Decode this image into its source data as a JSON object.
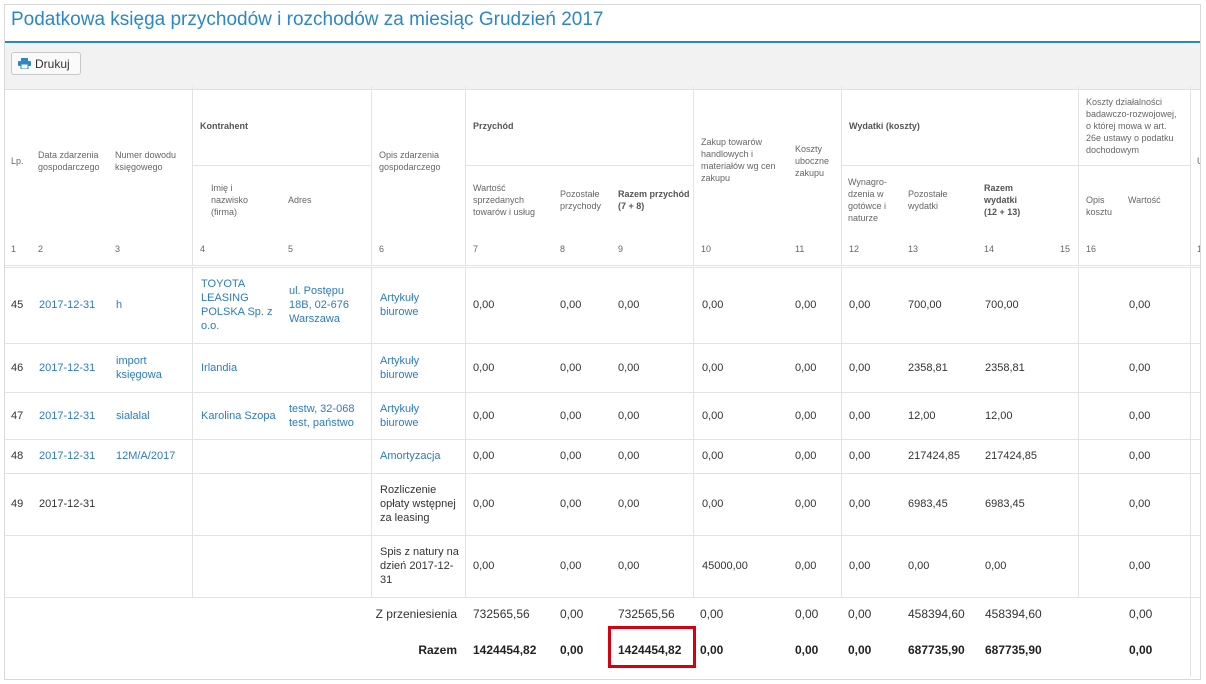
{
  "page": {
    "title": "Podatkowa księga przychodów i rozchodów za miesiąc Grudzień 2017",
    "print_button": "Drukuj",
    "print_icon": "printer-icon",
    "accent_color": "#2b87c8",
    "highlight_color": "#d6000e"
  },
  "headers": {
    "lp": "Lp.",
    "date": [
      "Data zdarzenia",
      "gospodarczego"
    ],
    "doc": [
      "Numer dowodu",
      "księgowego"
    ],
    "contractor": "Kontrahent",
    "name": [
      "Imię i",
      "nazwisko",
      "(firma)"
    ],
    "address": "Adres",
    "desc": [
      "Opis zdarzenia",
      "gospodarczego"
    ],
    "income": "Przychód",
    "sales": [
      "Wartość",
      "sprzedanych",
      "towarów i usług"
    ],
    "other_income": [
      "Pozostałe",
      "przychody"
    ],
    "income_total": [
      "Razem przychód",
      "(7 + 8)"
    ],
    "purchase": [
      "Zakup towarów",
      "handlowych i",
      "materiałów wg cen",
      "zakupu"
    ],
    "side_costs": [
      "Koszty",
      "uboczne",
      "zakupu"
    ],
    "expenses": "Wydatki (koszty)",
    "wages": [
      "Wynagro-",
      "dzenia w",
      "gotówce i",
      "naturze"
    ],
    "other_expenses": [
      "Pozostałe",
      "wydatki"
    ],
    "expenses_total": [
      "Razem",
      "wydatki",
      "(12 + 13)"
    ],
    "rd": [
      "Koszty działalności",
      "badawczo-rozwojowej,",
      "o której mowa w art.",
      "26e ustawy o podatku",
      "dochodowym"
    ],
    "rd_desc": [
      "Opis",
      "kosztu"
    ],
    "rd_value": "Wartość",
    "cut_u": "U",
    "nums": [
      "1",
      "2",
      "3",
      "4",
      "5",
      "6",
      "7",
      "8",
      "9",
      "10",
      "11",
      "12",
      "13",
      "14",
      "15",
      "16",
      "1"
    ]
  },
  "rows": [
    {
      "lp": "45",
      "date": "2017-12-31",
      "doc": [
        "h"
      ],
      "name": [
        "TOYOTA",
        "LEASING",
        "POLSKA Sp. z",
        "o.o."
      ],
      "addr": [
        "ul. Postępu",
        "18B, 02-676",
        "Warszawa"
      ],
      "desc": [
        "Artykuły",
        "biurowe"
      ],
      "c7": "0,00",
      "c8": "0,00",
      "c9": "0,00",
      "c10": "0,00",
      "c11": "0,00",
      "c12": "0,00",
      "c13": "700,00",
      "c14": "700,00",
      "c16": "0,00"
    },
    {
      "lp": "46",
      "date": "2017-12-31",
      "doc": [
        "import",
        "księgowa"
      ],
      "name": [
        "Irlandia"
      ],
      "addr": [],
      "desc": [
        "Artykuły",
        "biurowe"
      ],
      "c7": "0,00",
      "c8": "0,00",
      "c9": "0,00",
      "c10": "0,00",
      "c11": "0,00",
      "c12": "0,00",
      "c13": "2358,81",
      "c14": "2358,81",
      "c16": "0,00"
    },
    {
      "lp": "47",
      "date": "2017-12-31",
      "doc": [
        "sialalal"
      ],
      "name": [
        "Karolina Szopa"
      ],
      "addr": [
        "testw, 32-068",
        "test, państwo"
      ],
      "desc": [
        "Artykuły",
        "biurowe"
      ],
      "c7": "0,00",
      "c8": "0,00",
      "c9": "0,00",
      "c10": "0,00",
      "c11": "0,00",
      "c12": "0,00",
      "c13": "12,00",
      "c14": "12,00",
      "c16": "0,00"
    },
    {
      "lp": "48",
      "date": "2017-12-31",
      "doc": [
        "12M/A/2017"
      ],
      "name": [],
      "addr": [],
      "desc": [
        "Amortyzacja"
      ],
      "c7": "0,00",
      "c8": "0,00",
      "c9": "0,00",
      "c10": "0,00",
      "c11": "0,00",
      "c12": "0,00",
      "c13": "217424,85",
      "c14": "217424,85",
      "c16": "0,00"
    },
    {
      "lp": "49",
      "date": "2017-12-31",
      "doc": [],
      "name": [],
      "addr": [],
      "desc": [
        "Rozliczenie",
        "opłaty wstępnej",
        "za leasing"
      ],
      "c7": "0,00",
      "c8": "0,00",
      "c9": "0,00",
      "c10": "0,00",
      "c11": "0,00",
      "c12": "0,00",
      "c13": "6983,45",
      "c14": "6983,45",
      "c16": "0,00"
    },
    {
      "lp": "",
      "date": "",
      "doc": [],
      "name": [],
      "addr": [],
      "desc": [
        "Spis z natury na",
        "dzień 2017-12-",
        "31"
      ],
      "c7": "0,00",
      "c8": "0,00",
      "c9": "0,00",
      "c10": "45000,00",
      "c11": "0,00",
      "c12": "0,00",
      "c13": "0,00",
      "c14": "0,00",
      "c16": "0,00"
    }
  ],
  "totals": [
    {
      "label": "Z przeniesienia",
      "c7": "732565,56",
      "c8": "0,00",
      "c9": "732565,56",
      "c10": "0,00",
      "c11": "0,00",
      "c12": "0,00",
      "c13": "458394,60",
      "c14": "458394,60",
      "c16": "0,00"
    },
    {
      "label": "Razem",
      "c7": "1424454,82",
      "c8": "0,00",
      "c9": "1424454,82",
      "c10": "0,00",
      "c11": "0,00",
      "c12": "0,00",
      "c13": "687735,90",
      "c14": "687735,90",
      "c16": "0,00"
    }
  ]
}
